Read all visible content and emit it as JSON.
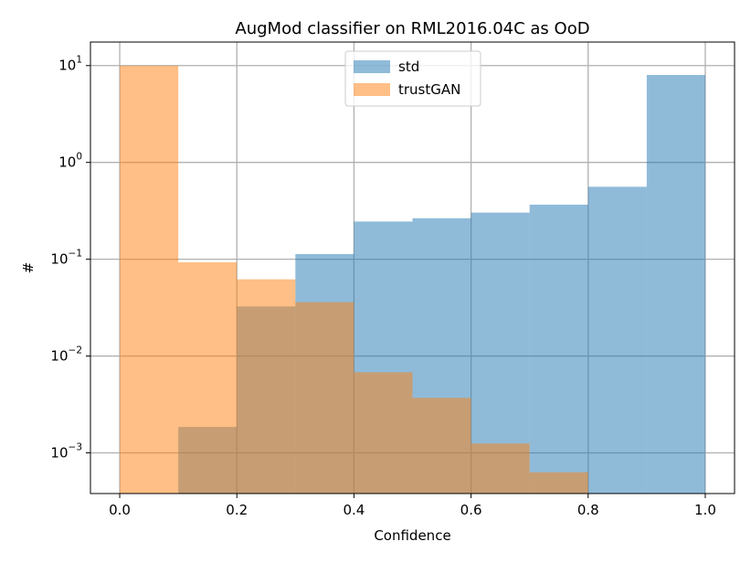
{
  "chart_data": {
    "type": "bar",
    "title": "AugMod classifier on RML2016.04C as OoD",
    "xlabel": "Confidence",
    "ylabel": "#",
    "xlim": [
      -0.05,
      1.05
    ],
    "ylim": [
      0.00038,
      17.5
    ],
    "yscale": "log",
    "grid": true,
    "legend_position": "top-center",
    "bin_edges": [
      0.0,
      0.1,
      0.2,
      0.3,
      0.4,
      0.5,
      0.6,
      0.7,
      0.8,
      0.9,
      1.0
    ],
    "x_ticks": [
      {
        "value": 0.0,
        "label": "0.0"
      },
      {
        "value": 0.2,
        "label": "0.2"
      },
      {
        "value": 0.4,
        "label": "0.4"
      },
      {
        "value": 0.6,
        "label": "0.6"
      },
      {
        "value": 0.8,
        "label": "0.8"
      },
      {
        "value": 1.0,
        "label": "1.0"
      }
    ],
    "y_ticks": [
      {
        "value": 0.001,
        "base": "10",
        "exp": "−3"
      },
      {
        "value": 0.01,
        "base": "10",
        "exp": "−2"
      },
      {
        "value": 0.1,
        "base": "10",
        "exp": "−1"
      },
      {
        "value": 1,
        "base": "10",
        "exp": "0"
      },
      {
        "value": 10,
        "base": "10",
        "exp": "1"
      }
    ],
    "series": [
      {
        "name": "std",
        "color": "#1f77b4",
        "opacity": 0.5,
        "values": [
          0,
          0.00185,
          0.0325,
          0.113,
          0.245,
          0.265,
          0.303,
          0.366,
          0.56,
          8.0
        ]
      },
      {
        "name": "trustGAN",
        "color": "#ff7f0e",
        "opacity": 0.5,
        "values": [
          9.96,
          0.093,
          0.062,
          0.036,
          0.0068,
          0.0037,
          0.00125,
          0.00063,
          0,
          0
        ]
      }
    ]
  }
}
